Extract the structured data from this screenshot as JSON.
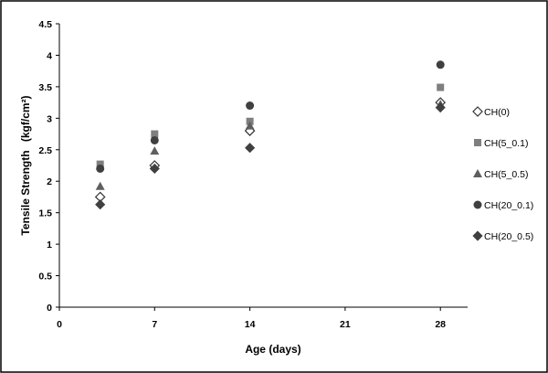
{
  "chart_data": {
    "type": "scatter",
    "title": "",
    "xlabel": "Age (days)",
    "ylabel_main": "Tensile  Strength",
    "ylabel_unit": "(kgf/cm²)",
    "xlim": [
      0,
      30
    ],
    "ylim": [
      0,
      4.5
    ],
    "x_ticks": [
      0,
      7,
      14,
      21,
      28
    ],
    "y_ticks": [
      0,
      0.5,
      1,
      1.5,
      2,
      2.5,
      3,
      3.5,
      4,
      4.5
    ],
    "y_tick_labels": [
      "0",
      "0.5",
      "1",
      "1.5",
      "2",
      "2.5",
      "3",
      "3.5",
      "4",
      "4.5"
    ],
    "grid": "vertical ticks only",
    "legend_position": "right",
    "series": [
      {
        "name": "CH(0)",
        "marker": "diamond-open",
        "color": "#333333",
        "x": [
          3,
          7,
          14,
          28
        ],
        "y": [
          1.75,
          2.25,
          2.8,
          3.25
        ]
      },
      {
        "name": "CH(5_0.1)",
        "marker": "square",
        "color": "#7f7f7f",
        "x": [
          3,
          7,
          14,
          28
        ],
        "y": [
          2.27,
          2.75,
          2.95,
          3.49
        ]
      },
      {
        "name": "CH(5_0.5)",
        "marker": "triangle",
        "color": "#5f5f5f",
        "x": [
          3,
          7,
          14,
          28
        ],
        "y": [
          1.92,
          2.48,
          2.88,
          3.22
        ]
      },
      {
        "name": "CH(20_0.1)",
        "marker": "circle",
        "color": "#404040",
        "x": [
          3,
          7,
          14,
          28
        ],
        "y": [
          2.2,
          2.65,
          3.2,
          3.85
        ]
      },
      {
        "name": "CH(20_0.5)",
        "marker": "diamond",
        "color": "#404040",
        "x": [
          3,
          7,
          14,
          28
        ],
        "y": [
          1.63,
          2.2,
          2.53,
          3.17
        ]
      }
    ]
  }
}
